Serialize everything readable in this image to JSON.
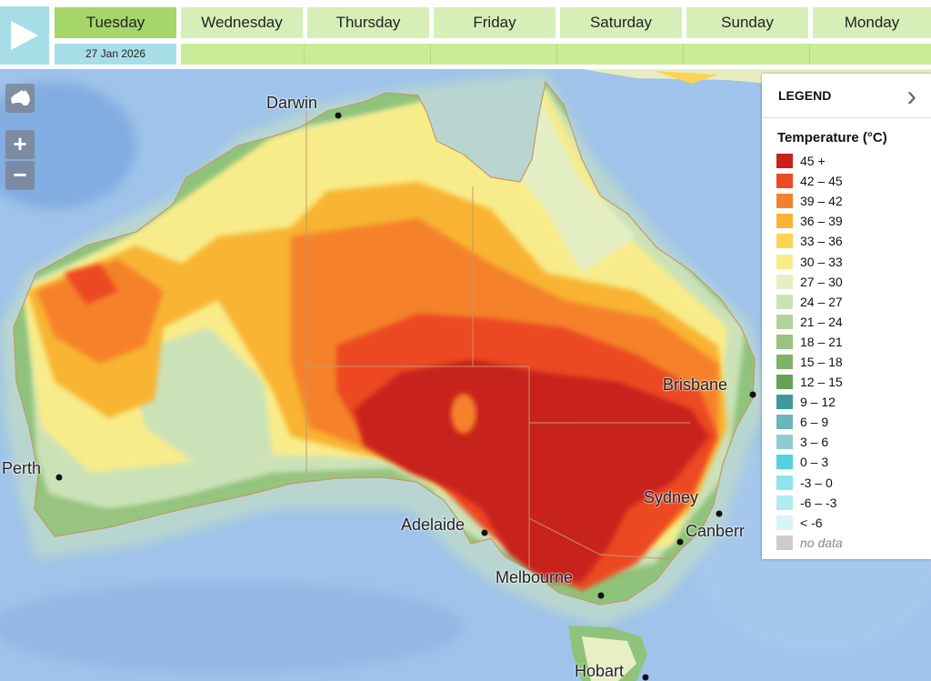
{
  "days": [
    {
      "label": "Tuesday",
      "active": true
    },
    {
      "label": "Wednesday"
    },
    {
      "label": "Thursday"
    },
    {
      "label": "Friday"
    },
    {
      "label": "Saturday"
    },
    {
      "label": "Sunday"
    },
    {
      "label": "Monday"
    }
  ],
  "date": "27 Jan 2026",
  "controls": {
    "zoom_in": "+",
    "zoom_out": "−"
  },
  "legend": {
    "header": "LEGEND",
    "title": "Temperature (°C)",
    "items": [
      {
        "label": "45 +",
        "color": "#c8201f"
      },
      {
        "label": "42 – 45",
        "color": "#ec4a24"
      },
      {
        "label": "39 – 42",
        "color": "#f5822a"
      },
      {
        "label": "36 – 39",
        "color": "#f8b432"
      },
      {
        "label": "33 – 36",
        "color": "#fbd455"
      },
      {
        "label": "30 – 33",
        "color": "#f8ec8a"
      },
      {
        "label": "27 – 30",
        "color": "#e5efc4"
      },
      {
        "label": "24 – 27",
        "color": "#cbe2b8"
      },
      {
        "label": "21 – 24",
        "color": "#b2d39a"
      },
      {
        "label": "18 – 21",
        "color": "#97c47e"
      },
      {
        "label": "15 – 18",
        "color": "#7fb468"
      },
      {
        "label": "12 – 15",
        "color": "#64a357"
      },
      {
        "label": "9 – 12",
        "color": "#3c9b9a"
      },
      {
        "label": "6 – 9",
        "color": "#6ab5bf"
      },
      {
        "label": "3 – 6",
        "color": "#8fcbcf"
      },
      {
        "label": "0 – 3",
        "color": "#55d1e0"
      },
      {
        "label": "-3 – 0",
        "color": "#8ce4ee"
      },
      {
        "label": "-6 – -3",
        "color": "#b2ebf2"
      },
      {
        "label": "< -6",
        "color": "#d6f3f6"
      },
      {
        "label": "no data",
        "color": "#cccccc",
        "nodata": true
      }
    ]
  },
  "cities": {
    "darwin": "Darwin",
    "perth": "Perth",
    "brisbane": "Brisbane",
    "adelaide": "Adelaide",
    "sydney": "Sydney",
    "canberra": "Canberr",
    "melbourne": "Melbourne",
    "hobart": "Hobart"
  }
}
